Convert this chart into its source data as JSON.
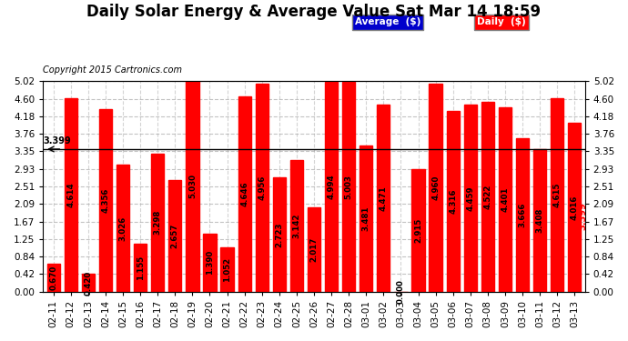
{
  "title": "Daily Solar Energy & Average Value Sat Mar 14 18:59",
  "copyright": "Copyright 2015 Cartronics.com",
  "average_value": 3.399,
  "bar_color": "#FF0000",
  "average_line_color": "#000000",
  "categories": [
    "02-11",
    "02-12",
    "02-13",
    "02-14",
    "02-15",
    "02-16",
    "02-17",
    "02-18",
    "02-19",
    "02-20",
    "02-21",
    "02-22",
    "02-23",
    "02-24",
    "02-25",
    "02-26",
    "02-27",
    "02-28",
    "03-01",
    "03-02",
    "03-03",
    "03-04",
    "03-05",
    "03-06",
    "03-07",
    "03-08",
    "03-09",
    "03-10",
    "03-11",
    "03-12",
    "03-13"
  ],
  "values": [
    0.67,
    4.614,
    0.42,
    4.356,
    3.026,
    1.155,
    3.298,
    2.657,
    5.03,
    1.39,
    1.052,
    4.646,
    4.956,
    2.723,
    3.142,
    2.017,
    4.994,
    5.003,
    3.481,
    4.471,
    0.0,
    2.915,
    4.96,
    4.316,
    4.459,
    4.522,
    4.401,
    3.666,
    3.408,
    4.615,
    4.016
  ],
  "ylim": [
    0.0,
    5.02
  ],
  "yticks": [
    0.0,
    0.42,
    0.84,
    1.25,
    1.67,
    2.09,
    2.51,
    2.93,
    3.35,
    3.76,
    4.18,
    4.6,
    5.02
  ],
  "background_color": "#FFFFFF",
  "plot_bg_color": "#FFFFFF",
  "grid_color": "#AAAAAA",
  "legend_avg_color": "#0000CC",
  "legend_daily_color": "#FF0000",
  "title_fontsize": 12,
  "tick_fontsize": 7.5,
  "bar_label_fontsize": 6.2
}
